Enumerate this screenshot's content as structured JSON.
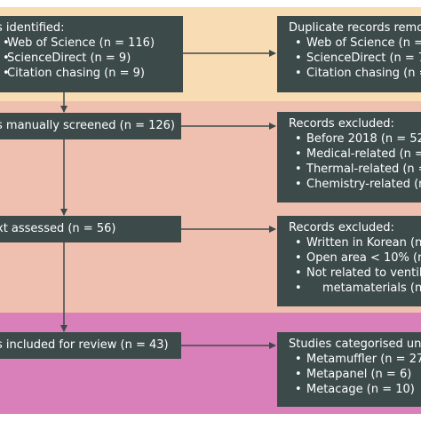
{
  "stages": [
    {
      "id": "identification",
      "band_color": "#f8ddb4",
      "left": {
        "lines": [
          "s identified:"
        ],
        "items": [
          "Web of Science (n = 116)",
          "ScienceDirect (n = 9)",
          "Citation chasing (n = 9)"
        ]
      },
      "right": {
        "lines": [
          "Duplicate records removed"
        ],
        "items": [
          "Web of Science (n = 7",
          "ScienceDirect (n = 7",
          "Citation chasing (n ="
        ]
      }
    },
    {
      "id": "screening",
      "band_color": "#efbfaf",
      "left": {
        "lines": [
          "s manually screened (n = 126)"
        ],
        "items": []
      },
      "right": {
        "lines": [
          "Records excluded:"
        ],
        "items": [
          "Before 2018 (n = 52",
          "Medical-related (n =",
          "Thermal-related (n =",
          "Chemistry-related (n"
        ]
      }
    },
    {
      "id": "eligibility",
      "band_color": "#efbfaf",
      "left": {
        "lines": [
          "xt assessed (n = 56)"
        ],
        "items": []
      },
      "right": {
        "lines": [
          "Records excluded:"
        ],
        "items": [
          "Written in Korean (n",
          "Open area < 10% (n",
          "Not related to ventil",
          "metamaterials (n ="
        ]
      }
    },
    {
      "id": "included",
      "band_color": "#d97fb9",
      "left": {
        "lines": [
          "s included for review (n = 43)"
        ],
        "items": []
      },
      "right": {
        "lines": [
          "Studies categorised unde"
        ],
        "items": [
          "Metamuffler (n = 27",
          "Metapanel (n = 6)",
          "Metacage (n = 10)"
        ]
      }
    }
  ]
}
